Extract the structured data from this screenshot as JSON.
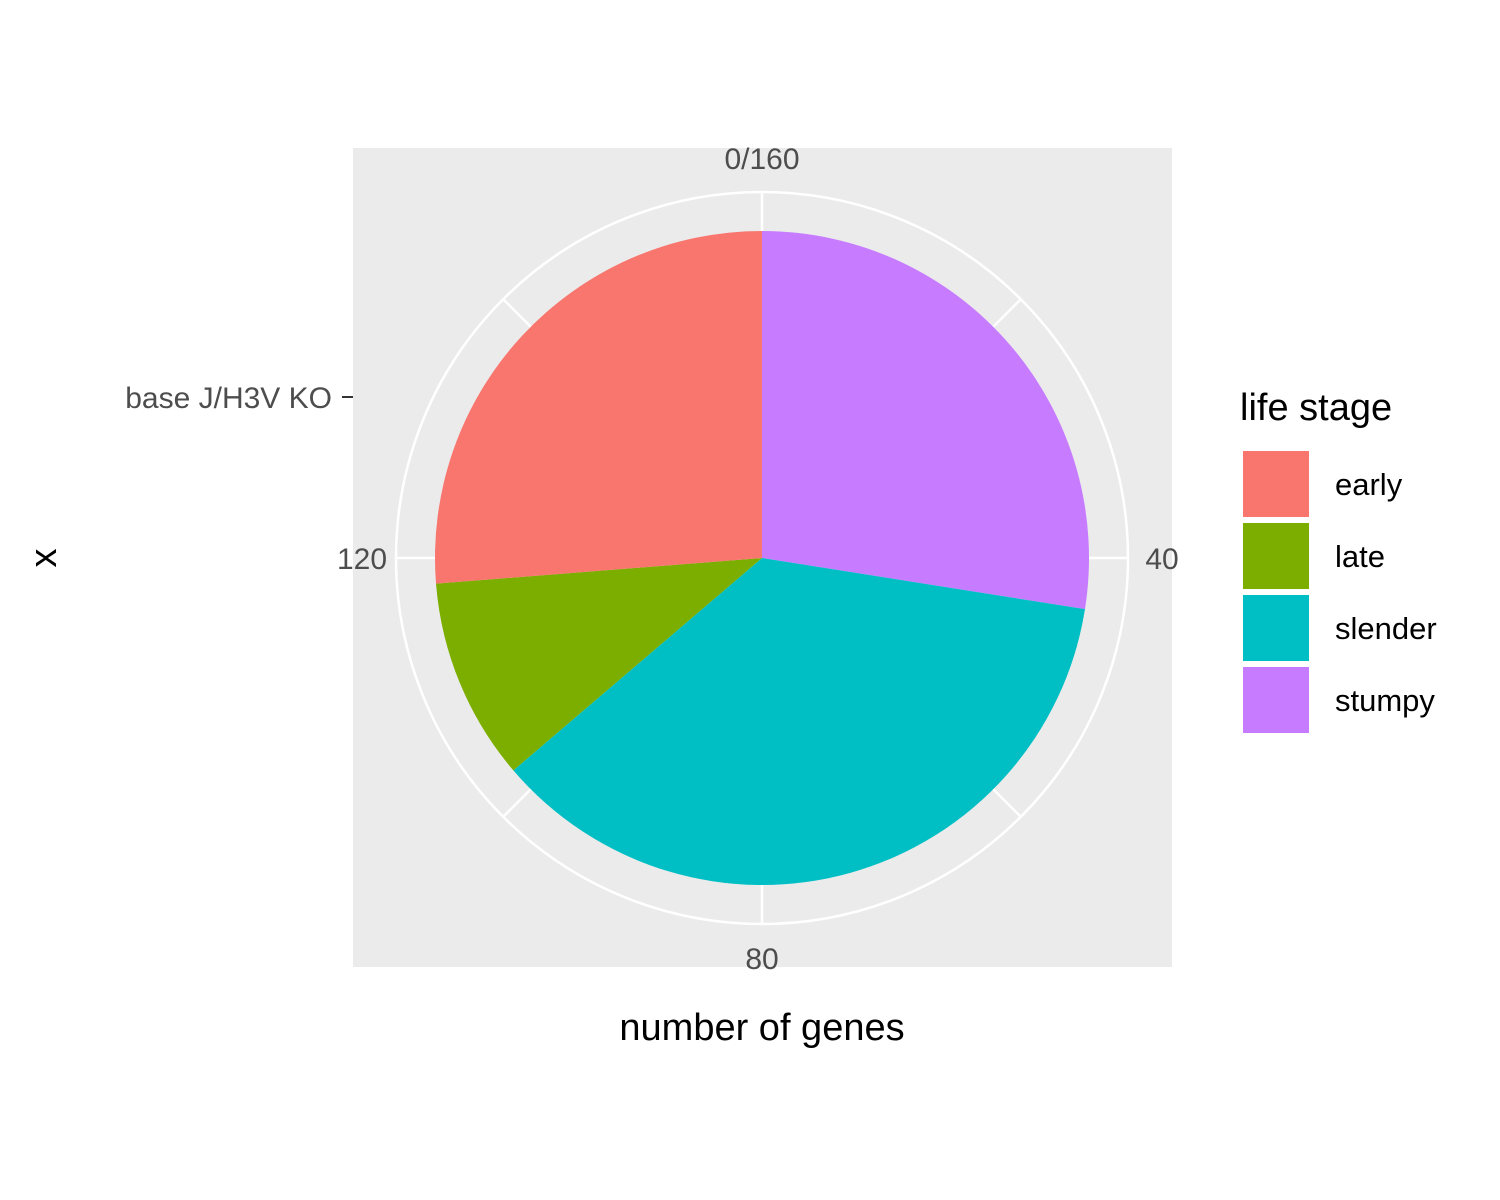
{
  "chart_data": {
    "type": "pie",
    "total": 160,
    "theta_ticks": [
      {
        "value": 0,
        "label": "0/160"
      },
      {
        "value": 40,
        "label": "40"
      },
      {
        "value": 80,
        "label": "80"
      },
      {
        "value": 120,
        "label": "120"
      }
    ],
    "x_category_label": "base J/H3V KO",
    "xlabel": "number of genes",
    "ylabel": "x",
    "legend": {
      "title": "life stage",
      "position": "right"
    },
    "slices": [
      {
        "name": "stumpy",
        "value": 44,
        "color": "#C77CFF"
      },
      {
        "name": "slender",
        "value": 58,
        "color": "#00BFC4"
      },
      {
        "name": "late",
        "value": 16,
        "color": "#7CAE00"
      },
      {
        "name": "early",
        "value": 42,
        "color": "#F8766D"
      }
    ],
    "legend_order": [
      "early",
      "late",
      "slender",
      "stumpy"
    ],
    "panel_background": "#EBEBEB",
    "grid_color": "#FFFFFF"
  }
}
